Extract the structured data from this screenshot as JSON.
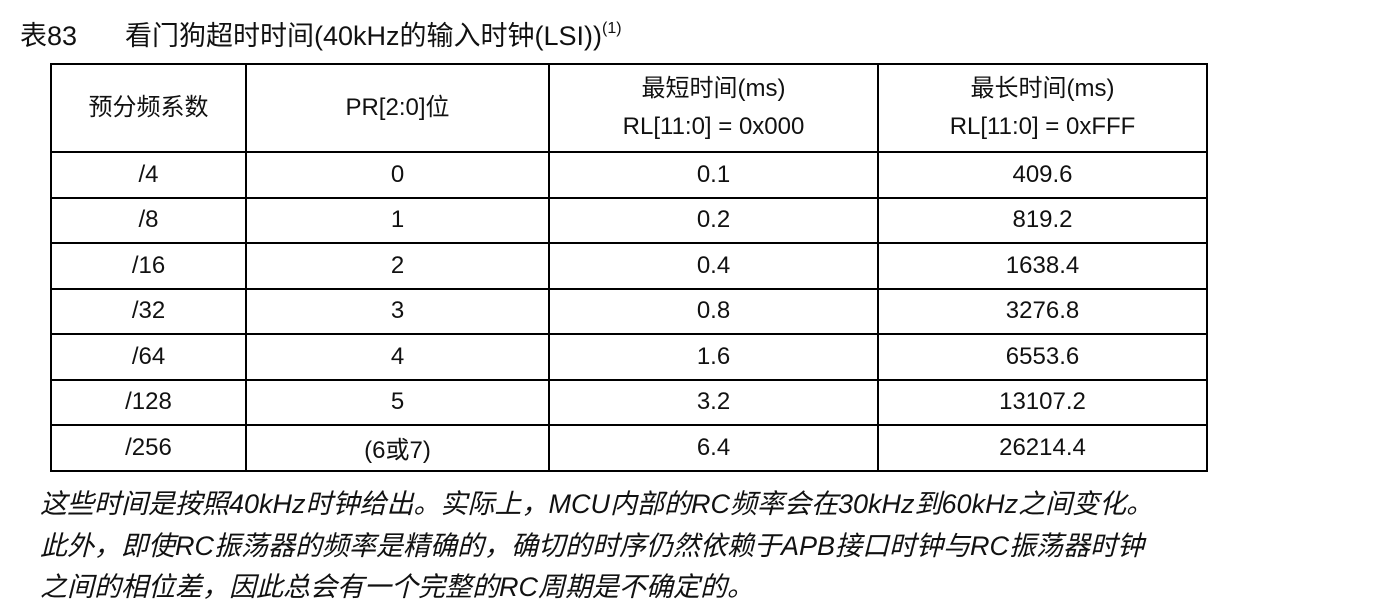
{
  "caption": {
    "number": "表83",
    "title": "看门狗超时时间(40kHz的输入时钟(LSI))",
    "note_ref": "(1)"
  },
  "table": {
    "header": [
      [
        "预分频系数"
      ],
      [
        "PR[2:0]位"
      ],
      [
        "最短时间(ms)",
        "RL[11:0] = 0x000"
      ],
      [
        "最长时间(ms)",
        "RL[11:0] = 0xFFF"
      ]
    ],
    "rows": [
      [
        "/4",
        "0",
        "0.1",
        "409.6"
      ],
      [
        "/8",
        "1",
        "0.2",
        "819.2"
      ],
      [
        "/16",
        "2",
        "0.4",
        "1638.4"
      ],
      [
        "/32",
        "3",
        "0.8",
        "3276.8"
      ],
      [
        "/64",
        "4",
        "1.6",
        "6553.6"
      ],
      [
        "/128",
        "5",
        "3.2",
        "13107.2"
      ],
      [
        "/256",
        "(6或7)",
        "6.4",
        "26214.4"
      ]
    ]
  },
  "footnote": [
    "这些时间是按照40kHz时钟给出。实际上，MCU内部的RC频率会在30kHz到60kHz之间变化。",
    "此外，即使RC振荡器的频率是精确的，确切的时序仍然依赖于APB接口时钟与RC振荡器时钟",
    "之间的相位差，因此总会有一个完整的RC周期是不确定的。"
  ]
}
